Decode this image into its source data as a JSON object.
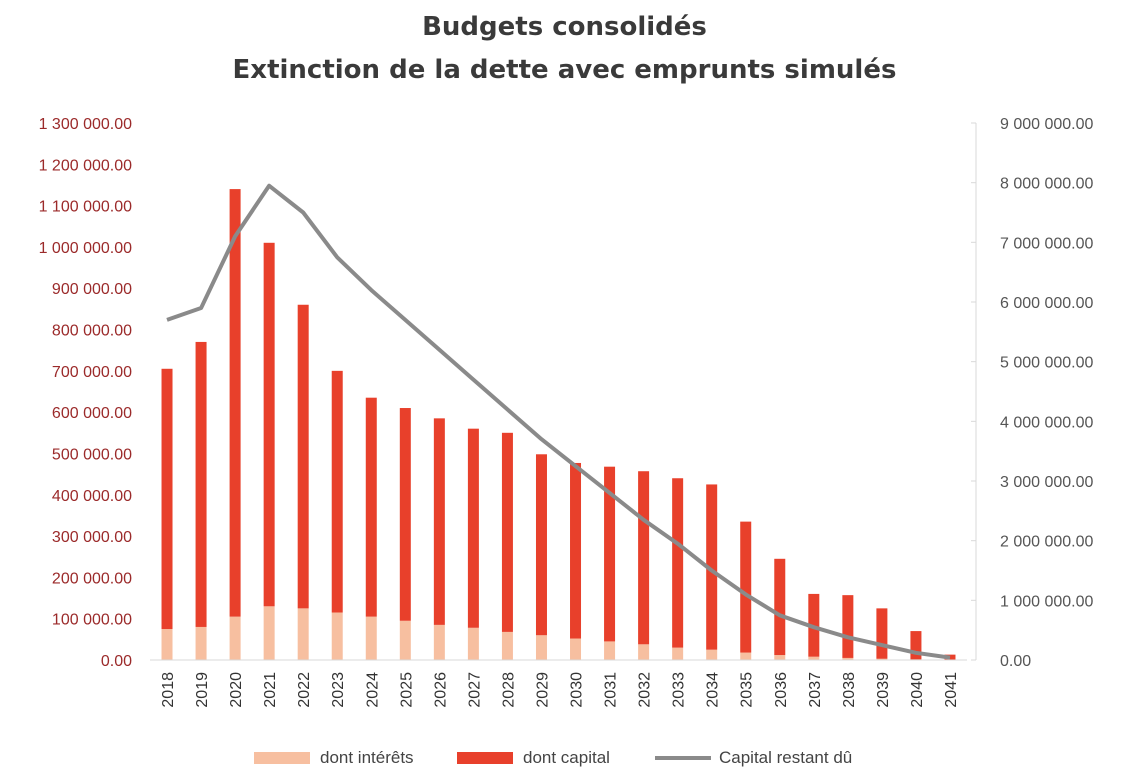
{
  "chart_data": {
    "type": "bar",
    "title": "Budgets consolidés",
    "subtitle": "Extinction de la dette avec emprunts simulés",
    "categories": [
      "2018",
      "2019",
      "2020",
      "2021",
      "2022",
      "2023",
      "2024",
      "2025",
      "2026",
      "2027",
      "2028",
      "2029",
      "2030",
      "2031",
      "2032",
      "2033",
      "2034",
      "2035",
      "2036",
      "2037",
      "2038",
      "2039",
      "2040",
      "2041"
    ],
    "series": [
      {
        "name": "dont intérêts",
        "axis": "left",
        "stacked": true,
        "color": "#f7bfa0",
        "values": [
          75000,
          80000,
          105000,
          130000,
          125000,
          115000,
          105000,
          95000,
          85000,
          78000,
          68000,
          60000,
          52000,
          45000,
          38000,
          30000,
          25000,
          18000,
          12000,
          8000,
          5000,
          3000,
          1500,
          500
        ]
      },
      {
        "name": "dont capital",
        "axis": "left",
        "stacked": true,
        "color": "#e8402b",
        "values": [
          630000,
          690000,
          1035000,
          880000,
          735000,
          585000,
          530000,
          515000,
          500000,
          482000,
          482000,
          438000,
          425000,
          423000,
          419000,
          410000,
          400000,
          317000,
          233000,
          152000,
          152000,
          122000,
          68500,
          12500
        ]
      },
      {
        "name": "Capital restant dû",
        "axis": "right",
        "type": "line",
        "color": "#8a8a8a",
        "values": [
          5700000,
          5900000,
          7100000,
          7950000,
          7500000,
          6750000,
          6200000,
          5700000,
          5200000,
          4700000,
          4200000,
          3700000,
          3250000,
          2800000,
          2350000,
          1950000,
          1500000,
          1100000,
          750000,
          550000,
          380000,
          250000,
          120000,
          40000
        ]
      }
    ],
    "y_left": {
      "min": 0,
      "max": 1300000,
      "ticks": [
        "0.00",
        "100 000.00",
        "200 000.00",
        "300 000.00",
        "400 000.00",
        "500 000.00",
        "600 000.00",
        "700 000.00",
        "800 000.00",
        "900 000.00",
        "1 000 000.00",
        "1 100 000.00",
        "1 200 000.00",
        "1 300 000.00"
      ]
    },
    "y_right": {
      "min": 0,
      "max": 9000000,
      "ticks": [
        "0.00",
        "1 000 000.00",
        "2 000 000.00",
        "3 000 000.00",
        "4 000 000.00",
        "5 000 000.00",
        "6 000 000.00",
        "7 000 000.00",
        "8 000 000.00",
        "9 000 000.00"
      ]
    },
    "grid": false,
    "legend_position": "bottom"
  }
}
